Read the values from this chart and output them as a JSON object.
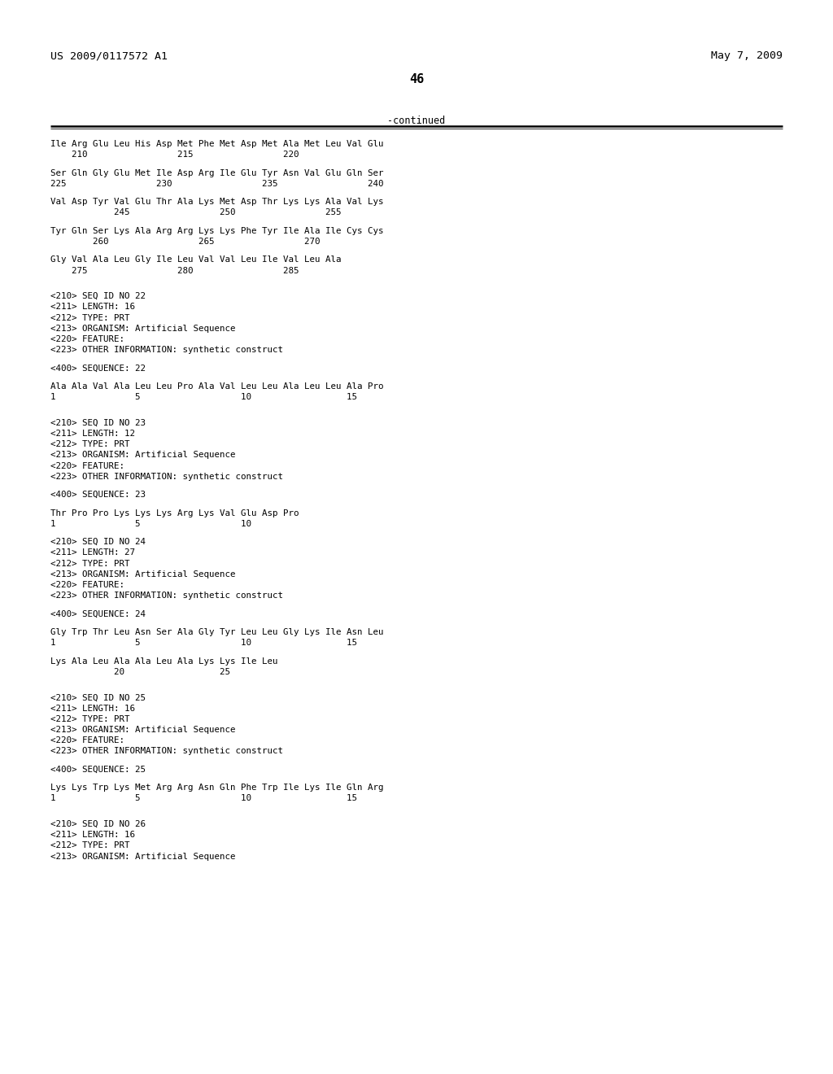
{
  "header_left": "US 2009/0117572 A1",
  "header_right": "May 7, 2009",
  "page_number": "46",
  "continued_label": "-continued",
  "background_color": "#ffffff",
  "text_color": "#000000",
  "lines": [
    {
      "text": "Ile Arg Glu Leu His Asp Met Phe Met Asp Met Ala Met Leu Val Glu",
      "type": "sequence"
    },
    {
      "text": "    210                 215                 220",
      "type": "numbering"
    },
    {
      "text": "",
      "type": "blank"
    },
    {
      "text": "Ser Gln Gly Glu Met Ile Asp Arg Ile Glu Tyr Asn Val Glu Gln Ser",
      "type": "sequence"
    },
    {
      "text": "225                 230                 235                 240",
      "type": "numbering"
    },
    {
      "text": "",
      "type": "blank"
    },
    {
      "text": "Val Asp Tyr Val Glu Thr Ala Lys Met Asp Thr Lys Lys Ala Val Lys",
      "type": "sequence"
    },
    {
      "text": "            245                 250                 255",
      "type": "numbering"
    },
    {
      "text": "",
      "type": "blank"
    },
    {
      "text": "Tyr Gln Ser Lys Ala Arg Arg Lys Lys Phe Tyr Ile Ala Ile Cys Cys",
      "type": "sequence"
    },
    {
      "text": "        260                 265                 270",
      "type": "numbering"
    },
    {
      "text": "",
      "type": "blank"
    },
    {
      "text": "Gly Val Ala Leu Gly Ile Leu Val Val Leu Ile Val Leu Ala",
      "type": "sequence"
    },
    {
      "text": "    275                 280                 285",
      "type": "numbering"
    },
    {
      "text": "",
      "type": "blank"
    },
    {
      "text": "",
      "type": "blank"
    },
    {
      "text": "<210> SEQ ID NO 22",
      "type": "meta"
    },
    {
      "text": "<211> LENGTH: 16",
      "type": "meta"
    },
    {
      "text": "<212> TYPE: PRT",
      "type": "meta"
    },
    {
      "text": "<213> ORGANISM: Artificial Sequence",
      "type": "meta"
    },
    {
      "text": "<220> FEATURE:",
      "type": "meta"
    },
    {
      "text": "<223> OTHER INFORMATION: synthetic construct",
      "type": "meta"
    },
    {
      "text": "",
      "type": "blank"
    },
    {
      "text": "<400> SEQUENCE: 22",
      "type": "meta"
    },
    {
      "text": "",
      "type": "blank"
    },
    {
      "text": "Ala Ala Val Ala Leu Leu Pro Ala Val Leu Leu Ala Leu Leu Ala Pro",
      "type": "sequence"
    },
    {
      "text": "1               5                   10                  15",
      "type": "numbering"
    },
    {
      "text": "",
      "type": "blank"
    },
    {
      "text": "",
      "type": "blank"
    },
    {
      "text": "<210> SEQ ID NO 23",
      "type": "meta"
    },
    {
      "text": "<211> LENGTH: 12",
      "type": "meta"
    },
    {
      "text": "<212> TYPE: PRT",
      "type": "meta"
    },
    {
      "text": "<213> ORGANISM: Artificial Sequence",
      "type": "meta"
    },
    {
      "text": "<220> FEATURE:",
      "type": "meta"
    },
    {
      "text": "<223> OTHER INFORMATION: synthetic construct",
      "type": "meta"
    },
    {
      "text": "",
      "type": "blank"
    },
    {
      "text": "<400> SEQUENCE: 23",
      "type": "meta"
    },
    {
      "text": "",
      "type": "blank"
    },
    {
      "text": "Thr Pro Pro Lys Lys Lys Arg Lys Val Glu Asp Pro",
      "type": "sequence"
    },
    {
      "text": "1               5                   10",
      "type": "numbering"
    },
    {
      "text": "",
      "type": "blank"
    },
    {
      "text": "<210> SEQ ID NO 24",
      "type": "meta"
    },
    {
      "text": "<211> LENGTH: 27",
      "type": "meta"
    },
    {
      "text": "<212> TYPE: PRT",
      "type": "meta"
    },
    {
      "text": "<213> ORGANISM: Artificial Sequence",
      "type": "meta"
    },
    {
      "text": "<220> FEATURE:",
      "type": "meta"
    },
    {
      "text": "<223> OTHER INFORMATION: synthetic construct",
      "type": "meta"
    },
    {
      "text": "",
      "type": "blank"
    },
    {
      "text": "<400> SEQUENCE: 24",
      "type": "meta"
    },
    {
      "text": "",
      "type": "blank"
    },
    {
      "text": "Gly Trp Thr Leu Asn Ser Ala Gly Tyr Leu Leu Gly Lys Ile Asn Leu",
      "type": "sequence"
    },
    {
      "text": "1               5                   10                  15",
      "type": "numbering"
    },
    {
      "text": "",
      "type": "blank"
    },
    {
      "text": "Lys Ala Leu Ala Ala Leu Ala Lys Lys Ile Leu",
      "type": "sequence"
    },
    {
      "text": "            20                  25",
      "type": "numbering"
    },
    {
      "text": "",
      "type": "blank"
    },
    {
      "text": "",
      "type": "blank"
    },
    {
      "text": "<210> SEQ ID NO 25",
      "type": "meta"
    },
    {
      "text": "<211> LENGTH: 16",
      "type": "meta"
    },
    {
      "text": "<212> TYPE: PRT",
      "type": "meta"
    },
    {
      "text": "<213> ORGANISM: Artificial Sequence",
      "type": "meta"
    },
    {
      "text": "<220> FEATURE:",
      "type": "meta"
    },
    {
      "text": "<223> OTHER INFORMATION: synthetic construct",
      "type": "meta"
    },
    {
      "text": "",
      "type": "blank"
    },
    {
      "text": "<400> SEQUENCE: 25",
      "type": "meta"
    },
    {
      "text": "",
      "type": "blank"
    },
    {
      "text": "Lys Lys Trp Lys Met Arg Arg Asn Gln Phe Trp Ile Lys Ile Gln Arg",
      "type": "sequence"
    },
    {
      "text": "1               5                   10                  15",
      "type": "numbering"
    },
    {
      "text": "",
      "type": "blank"
    },
    {
      "text": "",
      "type": "blank"
    },
    {
      "text": "<210> SEQ ID NO 26",
      "type": "meta"
    },
    {
      "text": "<211> LENGTH: 16",
      "type": "meta"
    },
    {
      "text": "<212> TYPE: PRT",
      "type": "meta"
    },
    {
      "text": "<213> ORGANISM: Artificial Sequence",
      "type": "meta"
    }
  ]
}
